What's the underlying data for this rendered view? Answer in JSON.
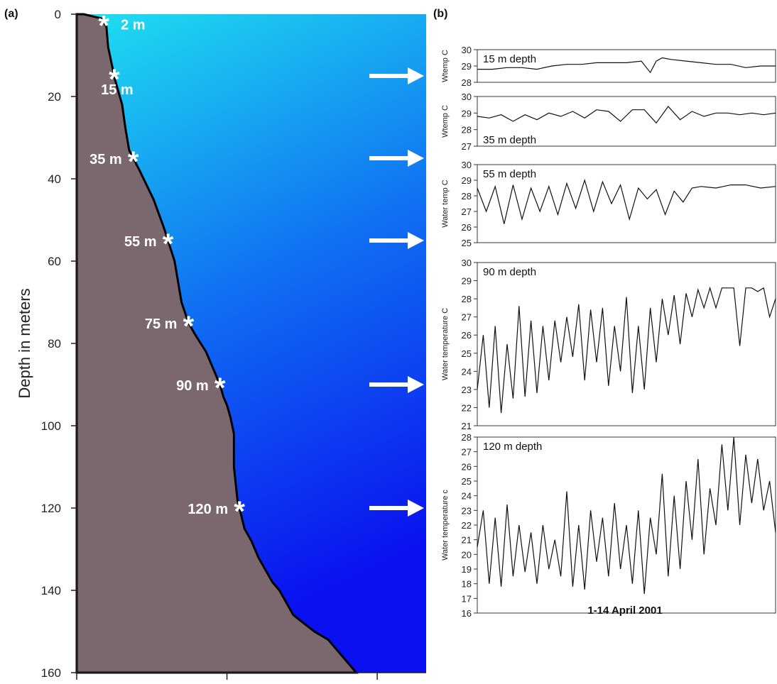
{
  "figure": {
    "panel_a_label": "(a)",
    "panel_b_label": "(b)",
    "footer_label": "1-14 April 2001",
    "colors": {
      "water_top": "#1ee0f0",
      "water_bottom": "#0a10f0",
      "seafloor": "#7a686e",
      "seafloor_edge": "#000000",
      "arrow": "#ffffff"
    }
  },
  "chart_data": [
    {
      "type": "area",
      "panel": "(a)",
      "ylabel": "Depth in meters",
      "xlabel": "",
      "ylim": [
        0,
        160
      ],
      "y_inverted": true,
      "yticks": [
        0,
        20,
        40,
        60,
        80,
        100,
        120,
        140,
        160
      ],
      "seafloor_profile": {
        "x": [
          0.02,
          0.07,
          0.085,
          0.09,
          0.1,
          0.11,
          0.13,
          0.135,
          0.14,
          0.15,
          0.18,
          0.22,
          0.25,
          0.28,
          0.29,
          0.3,
          0.32,
          0.34,
          0.37,
          0.39,
          0.41,
          0.42,
          0.43,
          0.44,
          0.45,
          0.45,
          0.46,
          0.48,
          0.5,
          0.52,
          0.54,
          0.56,
          0.58,
          0.6,
          0.62,
          0.65,
          0.68,
          0.72,
          0.76,
          0.8
        ],
        "depth": [
          0,
          1,
          3,
          8,
          12,
          16,
          22,
          25,
          28,
          33,
          38,
          45,
          52,
          60,
          65,
          70,
          75,
          78,
          82,
          86,
          90,
          93,
          95,
          98,
          102,
          110,
          118,
          125,
          128,
          132,
          135,
          138,
          140,
          143,
          146,
          148,
          150,
          152,
          156,
          160
        ]
      },
      "sensors": [
        {
          "label": "2 m",
          "depth": 2
        },
        {
          "label": "15 m",
          "depth": 15
        },
        {
          "label": "35 m",
          "depth": 35
        },
        {
          "label": "55 m",
          "depth": 55
        },
        {
          "label": "75 m",
          "depth": 75
        },
        {
          "label": "90 m",
          "depth": 90
        },
        {
          "label": "120 m",
          "depth": 120
        }
      ],
      "arrows_at_depth": [
        15,
        35,
        55,
        90,
        120
      ]
    },
    {
      "type": "line",
      "panel": "(b)",
      "title": "15 m depth",
      "ylabel": "Wtemp C",
      "ylim": [
        28,
        30
      ],
      "yticks": [
        28,
        29,
        30
      ],
      "grid": false,
      "x": [
        0,
        0.05,
        0.1,
        0.15,
        0.2,
        0.25,
        0.3,
        0.35,
        0.4,
        0.45,
        0.5,
        0.55,
        0.58,
        0.6,
        0.62,
        0.65,
        0.7,
        0.75,
        0.8,
        0.85,
        0.9,
        0.95,
        1.0
      ],
      "values": [
        28.8,
        28.8,
        28.9,
        28.9,
        28.8,
        29.0,
        29.1,
        29.1,
        29.2,
        29.2,
        29.2,
        29.3,
        28.6,
        29.3,
        29.5,
        29.4,
        29.3,
        29.2,
        29.1,
        29.1,
        28.9,
        29.0,
        29.0
      ]
    },
    {
      "type": "line",
      "panel": "(b)",
      "title": "35 m depth",
      "ylabel": "Wtemp C",
      "ylim": [
        27,
        30
      ],
      "yticks": [
        27,
        28,
        29,
        30
      ],
      "grid": false,
      "x": [
        0,
        0.04,
        0.08,
        0.12,
        0.16,
        0.2,
        0.24,
        0.28,
        0.32,
        0.36,
        0.4,
        0.44,
        0.48,
        0.52,
        0.56,
        0.6,
        0.64,
        0.68,
        0.72,
        0.76,
        0.8,
        0.84,
        0.88,
        0.92,
        0.96,
        1.0
      ],
      "values": [
        28.8,
        28.7,
        28.9,
        28.5,
        28.9,
        28.6,
        29.0,
        28.8,
        29.1,
        28.7,
        29.2,
        29.1,
        28.5,
        29.2,
        29.2,
        28.4,
        29.4,
        28.6,
        29.1,
        28.8,
        29.0,
        29.0,
        28.9,
        29.0,
        28.9,
        29.0
      ]
    },
    {
      "type": "line",
      "panel": "(b)",
      "title": "55 m depth",
      "ylabel": "Water temp C",
      "ylim": [
        25,
        30
      ],
      "yticks": [
        25,
        26,
        27,
        28,
        29,
        30
      ],
      "grid": false,
      "x": [
        0,
        0.03,
        0.06,
        0.09,
        0.12,
        0.15,
        0.18,
        0.21,
        0.24,
        0.27,
        0.3,
        0.33,
        0.36,
        0.39,
        0.42,
        0.45,
        0.48,
        0.51,
        0.54,
        0.57,
        0.6,
        0.63,
        0.66,
        0.69,
        0.72,
        0.75,
        0.8,
        0.85,
        0.9,
        0.95,
        1.0
      ],
      "values": [
        28.5,
        27.0,
        28.6,
        26.2,
        28.7,
        26.5,
        28.5,
        27.0,
        28.6,
        26.8,
        28.8,
        27.2,
        29.0,
        27.0,
        28.9,
        27.5,
        28.7,
        26.5,
        28.5,
        27.8,
        28.4,
        26.8,
        28.3,
        27.6,
        28.5,
        28.6,
        28.5,
        28.7,
        28.7,
        28.5,
        28.6
      ]
    },
    {
      "type": "line",
      "panel": "(b)",
      "title": "90 m depth",
      "ylabel": "Water temperature C",
      "ylim": [
        21,
        30
      ],
      "yticks": [
        21,
        22,
        23,
        24,
        25,
        26,
        27,
        28,
        29,
        30
      ],
      "grid": false,
      "x": [
        0,
        0.02,
        0.04,
        0.06,
        0.08,
        0.1,
        0.12,
        0.14,
        0.16,
        0.18,
        0.2,
        0.22,
        0.24,
        0.26,
        0.28,
        0.3,
        0.32,
        0.34,
        0.36,
        0.38,
        0.4,
        0.42,
        0.44,
        0.46,
        0.48,
        0.5,
        0.52,
        0.54,
        0.56,
        0.58,
        0.6,
        0.62,
        0.64,
        0.66,
        0.68,
        0.7,
        0.72,
        0.74,
        0.76,
        0.78,
        0.8,
        0.82,
        0.84,
        0.86,
        0.88,
        0.9,
        0.92,
        0.94,
        0.96,
        0.98,
        1.0
      ],
      "values": [
        23.0,
        26.0,
        22.0,
        26.5,
        21.7,
        25.5,
        22.5,
        27.6,
        22.6,
        26.8,
        22.8,
        26.5,
        23.5,
        26.8,
        24.5,
        27.0,
        24.8,
        27.7,
        23.5,
        27.4,
        24.5,
        27.5,
        23.2,
        26.5,
        24.0,
        28.1,
        22.8,
        26.5,
        23.0,
        27.5,
        24.5,
        28.0,
        26.0,
        28.2,
        25.5,
        28.3,
        27.0,
        28.5,
        27.5,
        28.6,
        27.5,
        28.6,
        28.6,
        28.6,
        25.4,
        28.6,
        28.6,
        28.4,
        28.6,
        27.0,
        28.0
      ]
    },
    {
      "type": "line",
      "panel": "(b)",
      "title": "120 m depth",
      "ylabel": "Water temperature c",
      "ylim": [
        16,
        28
      ],
      "yticks": [
        16,
        17,
        18,
        19,
        20,
        21,
        22,
        23,
        24,
        25,
        26,
        27,
        28
      ],
      "grid": false,
      "x": [
        0,
        0.02,
        0.04,
        0.06,
        0.08,
        0.1,
        0.12,
        0.14,
        0.16,
        0.18,
        0.2,
        0.22,
        0.24,
        0.26,
        0.28,
        0.3,
        0.32,
        0.34,
        0.36,
        0.38,
        0.4,
        0.42,
        0.44,
        0.46,
        0.48,
        0.5,
        0.52,
        0.54,
        0.56,
        0.58,
        0.6,
        0.62,
        0.64,
        0.66,
        0.68,
        0.7,
        0.72,
        0.74,
        0.76,
        0.78,
        0.8,
        0.82,
        0.84,
        0.86,
        0.88,
        0.9,
        0.92,
        0.94,
        0.96,
        0.98,
        1.0
      ],
      "values": [
        20.5,
        23.0,
        18.0,
        22.5,
        17.8,
        23.4,
        18.5,
        22.0,
        18.8,
        21.5,
        18.0,
        22.0,
        19.0,
        21.0,
        18.5,
        24.3,
        17.8,
        22.0,
        17.6,
        23.0,
        19.5,
        22.5,
        18.5,
        23.5,
        19.0,
        22.0,
        18.0,
        23.0,
        17.3,
        22.5,
        20.0,
        25.5,
        18.5,
        24.0,
        19.0,
        25.0,
        21.0,
        26.5,
        20.0,
        24.5,
        22.0,
        27.5,
        23.0,
        28.0,
        22.0,
        26.8,
        23.5,
        26.5,
        23.0,
        25.0,
        21.5
      ]
    }
  ]
}
